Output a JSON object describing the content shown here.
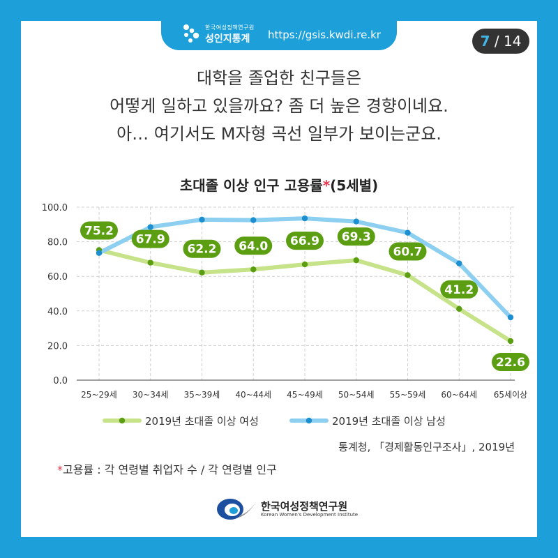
{
  "brand": {
    "small": "한국여성정책연구원",
    "main": "성인지통계",
    "url": "https://gsis.kwdi.re.kr"
  },
  "page": {
    "current": "7",
    "total": "14",
    "separator": "/"
  },
  "headline": [
    "대학을 졸업한 친구들은",
    "어떻게 일하고 있을까요?  좀 더 높은 경향이네요.",
    "아… 여기서도 M자형 곡선 일부가 보이는군요."
  ],
  "chart_data": {
    "type": "line",
    "title": "초대졸 이상 인구 고용률",
    "title_asterisk": "*",
    "title_suffix": "(5세별)",
    "categories": [
      "25~29세",
      "30~34세",
      "35~39세",
      "40~44세",
      "45~49세",
      "50~54세",
      "55~59세",
      "60~64세",
      "65세이상"
    ],
    "series": [
      {
        "name": "2019년 초대졸 이상 여성",
        "values": [
          75.2,
          67.9,
          62.2,
          64.0,
          66.9,
          69.3,
          60.7,
          41.2,
          22.6
        ],
        "line_color": "#c6e38a",
        "marker_color": "#5b9e12",
        "label_color": "#5b9e12",
        "labeled": true
      },
      {
        "name": "2019년 초대졸 이상 남성",
        "values": [
          73.5,
          88.5,
          92.8,
          92.5,
          93.5,
          91.7,
          85.2,
          67.5,
          36.3
        ],
        "line_color": "#8ccff0",
        "marker_color": "#1d8fd0",
        "labeled": false
      }
    ],
    "yticks": [
      "0.0",
      "20.0",
      "40.0",
      "60.0",
      "80.0",
      "100.0"
    ],
    "ylim": [
      0,
      100
    ],
    "grid": true,
    "legend_position": "bottom"
  },
  "source": "통계청, 「경제활동인구조사」, 2019년",
  "footnote": {
    "asterisk": "*",
    "text": "고용률 : 각 연령별 취업자 수 / 각 연령별 인구"
  },
  "org": {
    "name_ko": "한국여성정책연구원",
    "name_en": "Korean Women's Development Institute"
  },
  "colors": {
    "frame": "#1d9fd9",
    "asterisk": "#e8384f"
  }
}
